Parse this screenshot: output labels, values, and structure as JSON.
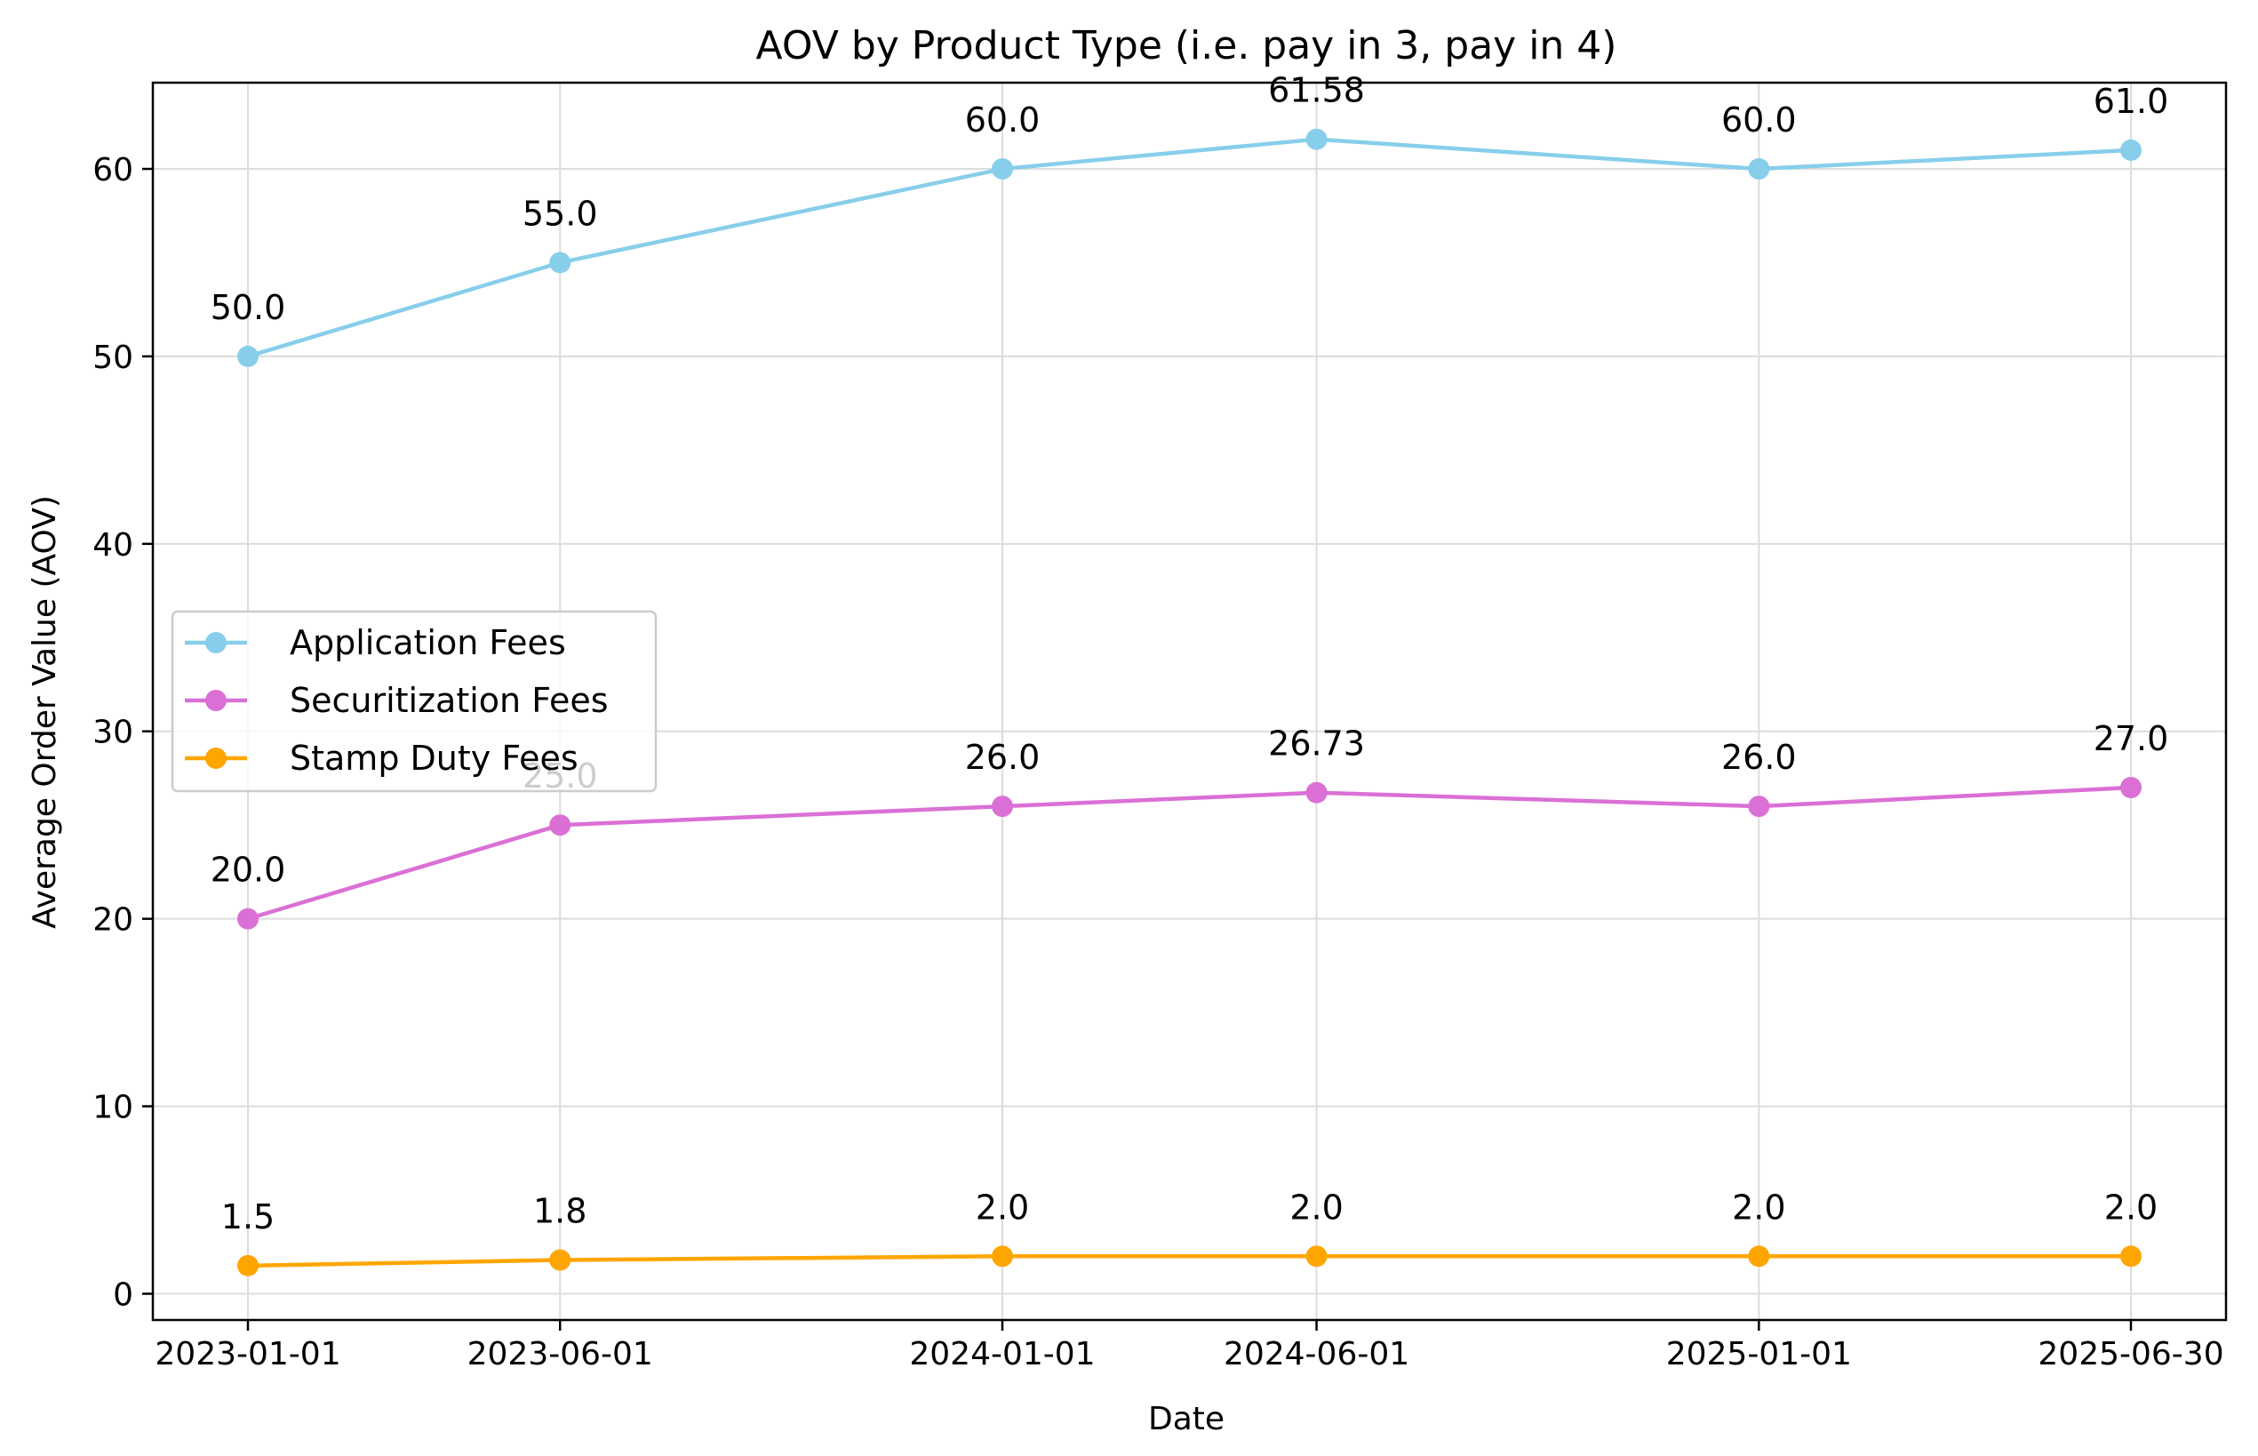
{
  "chart_data": {
    "type": "line",
    "title": "AOV by Product Type (i.e. pay in 3, pay in 4)",
    "xlabel": "Date",
    "ylabel": "Average Order Value (AOV)",
    "x": [
      "2023-01-01",
      "2023-06-01",
      "2024-01-01",
      "2024-06-01",
      "2025-01-01",
      "2025-06-30"
    ],
    "ylim": [
      -1.4,
      64.6
    ],
    "yticks": [
      0,
      10,
      20,
      30,
      40,
      50,
      60
    ],
    "grid": true,
    "legend_position": "center-left",
    "series": [
      {
        "name": "Application Fees",
        "color": "#87ceeb",
        "values": [
          50.0,
          55.0,
          60.0,
          61.58,
          60.0,
          61.0
        ],
        "labels": [
          "50.0",
          "55.0",
          "60.0",
          "61.58",
          "60.0",
          "61.0"
        ]
      },
      {
        "name": "Securitization Fees",
        "color": "#da70d6",
        "values": [
          20.0,
          25.0,
          26.0,
          26.73,
          26.0,
          27.0
        ],
        "labels": [
          "20.0",
          "25.0",
          "26.0",
          "26.73",
          "26.0",
          "27.0"
        ]
      },
      {
        "name": "Stamp Duty Fees",
        "color": "#ffa500",
        "values": [
          1.5,
          1.8,
          2.0,
          2.0,
          2.0,
          2.0
        ],
        "labels": [
          "1.5",
          "1.8",
          "2.0",
          "2.0",
          "2.0",
          "2.0"
        ]
      }
    ]
  }
}
